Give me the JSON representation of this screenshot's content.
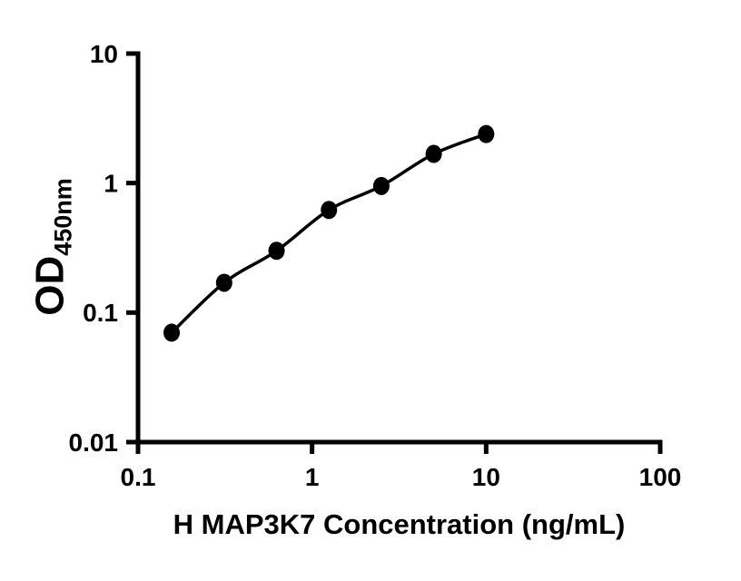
{
  "figure": {
    "background": "#ffffff",
    "foreground": "#000000"
  },
  "chart_data": {
    "type": "scatter",
    "title": "",
    "xlabel": "H MAP3K7 Concentration (ng/mL)",
    "ylabel_main": "OD",
    "ylabel_sub": "450nm",
    "x_scale": "log",
    "y_scale": "log",
    "xlim": [
      0.1,
      100
    ],
    "ylim": [
      0.01,
      10
    ],
    "x_ticks": [
      0.1,
      1,
      10,
      100
    ],
    "x_tick_labels": [
      "0.1",
      "1",
      "10",
      "100"
    ],
    "y_ticks": [
      10,
      1,
      0.1,
      0.01
    ],
    "y_tick_labels": [
      "10",
      "1",
      "0.1",
      "0.01"
    ],
    "x": [
      0.156,
      0.3125,
      0.625,
      1.25,
      2.5,
      5,
      10
    ],
    "y": [
      0.07,
      0.17,
      0.3,
      0.62,
      0.95,
      1.68,
      2.39
    ],
    "grid": false,
    "legend": false,
    "marker_color": "#000000",
    "line_color": "#000000",
    "axis_color": "#000000",
    "curve": "smooth"
  }
}
